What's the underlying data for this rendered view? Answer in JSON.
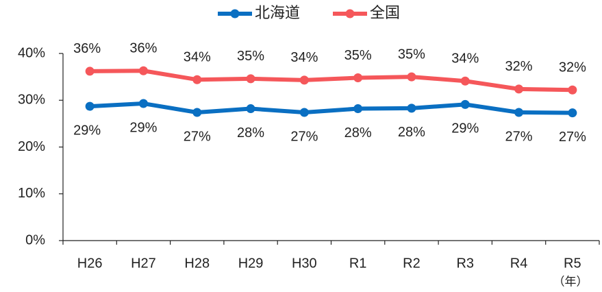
{
  "chart_data": {
    "type": "line",
    "categories": [
      "H26",
      "H27",
      "H28",
      "H29",
      "H30",
      "R1",
      "R2",
      "R3",
      "R4",
      "R5"
    ],
    "x_unit_label": "（年）",
    "series": [
      {
        "name": "北海道",
        "color": "#0a6fc2",
        "values": [
          28.7,
          29.3,
          27.4,
          28.2,
          27.4,
          28.2,
          28.3,
          29.1,
          27.4,
          27.3
        ],
        "value_labels": [
          "29%",
          "29%",
          "27%",
          "28%",
          "27%",
          "28%",
          "28%",
          "29%",
          "27%",
          "27%"
        ]
      },
      {
        "name": "全国",
        "color": "#f5575a",
        "values": [
          36.2,
          36.3,
          34.4,
          34.6,
          34.3,
          34.8,
          35.0,
          34.1,
          32.4,
          32.2
        ],
        "value_labels": [
          "36%",
          "36%",
          "34%",
          "35%",
          "34%",
          "35%",
          "35%",
          "34%",
          "32%",
          "32%"
        ]
      }
    ],
    "ylim": [
      0,
      40
    ],
    "yticks": [
      {
        "value": 0,
        "label": "0%"
      },
      {
        "value": 10,
        "label": "10%"
      },
      {
        "value": 20,
        "label": "20%"
      },
      {
        "value": 30,
        "label": "30%"
      },
      {
        "value": 40,
        "label": "40%"
      }
    ],
    "grid": false,
    "legend": "top"
  }
}
